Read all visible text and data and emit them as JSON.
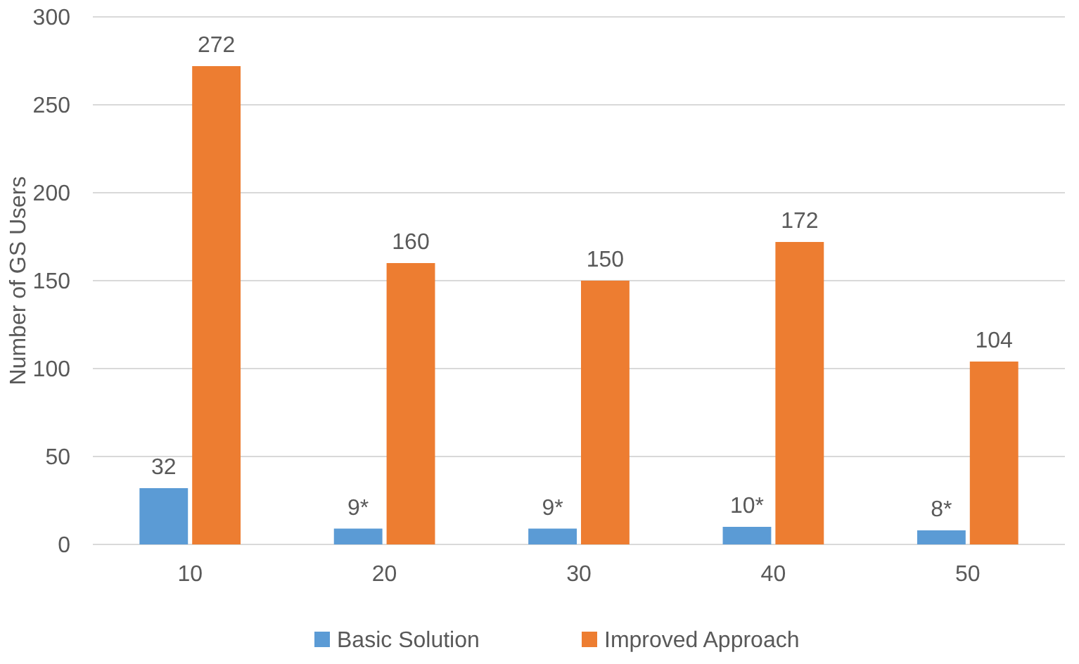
{
  "chart_data": {
    "type": "bar",
    "ylabel": "Number of GS Users",
    "categories": [
      "10",
      "20",
      "30",
      "40",
      "50"
    ],
    "series": [
      {
        "name": "Basic Solution",
        "color": "#5b9bd5",
        "values": [
          32,
          9,
          9,
          10,
          8
        ],
        "value_labels": [
          "32",
          "9*",
          "9*",
          "10*",
          "8*"
        ]
      },
      {
        "name": "Improved Approach",
        "color": "#ed7d31",
        "values": [
          272,
          160,
          150,
          172,
          104
        ],
        "value_labels": [
          "272",
          "160",
          "150",
          "172",
          "104"
        ]
      }
    ],
    "ylim": [
      0,
      300
    ],
    "yticks": [
      0,
      50,
      100,
      150,
      200,
      250,
      300
    ],
    "grid": "y",
    "legend": "bottom"
  }
}
